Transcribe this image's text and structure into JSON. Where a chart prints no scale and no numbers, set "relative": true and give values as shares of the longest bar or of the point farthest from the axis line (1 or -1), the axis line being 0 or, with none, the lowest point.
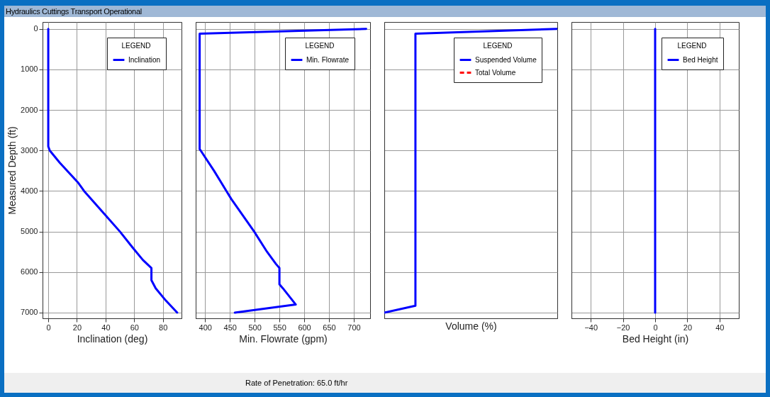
{
  "chart_data": [
    {
      "type": "line",
      "title": "Hydraulics Cuttings Transport Operational",
      "orientation": "horizontal",
      "xlabel": "Inclination (deg)",
      "ylabel": "Measured Depth (ft)",
      "xlim": [
        -4,
        93
      ],
      "xticks": [
        0,
        20,
        40,
        60,
        80
      ],
      "ylim": [
        7140,
        -170
      ],
      "yticks": [
        0,
        1000,
        2000,
        3000,
        4000,
        5000,
        6000,
        7000
      ],
      "grid": true,
      "legend": "top right",
      "legend_title": "LEGEND",
      "x": [
        0,
        2900,
        3000,
        3300,
        3800,
        4000,
        4600,
        5000,
        5400,
        5700,
        5900,
        6200,
        6400,
        6700,
        7000
      ],
      "series": [
        {
          "name": "Inclination",
          "color": "#0000ff",
          "values": [
            0,
            0,
            1,
            8,
            21,
            25,
            40,
            50,
            59,
            66,
            72,
            72,
            75,
            82,
            90
          ]
        }
      ]
    },
    {
      "type": "line",
      "orientation": "horizontal",
      "xlabel": "Min. Flowrate (gpm)",
      "xlim": [
        381,
        733
      ],
      "xticks": [
        400,
        450,
        500,
        550,
        600,
        650,
        700
      ],
      "ylim": [
        7140,
        -170
      ],
      "yticks": [
        0,
        1000,
        2000,
        3000,
        4000,
        5000,
        6000,
        7000
      ],
      "grid": true,
      "tick_labels": "x",
      "legend": "top right",
      "legend_title": "LEGEND",
      "annotations": [
        "Rate of Penetration: 65.0 ft/hr"
      ],
      "x": [
        0,
        117,
        2970,
        3000,
        3500,
        4000,
        4200,
        5000,
        5500,
        5800,
        5900,
        6300,
        6400,
        6800,
        7000
      ],
      "series": [
        {
          "name": "Min. Flowrate",
          "color": "#0000ff",
          "values": [
            725,
            389,
            389,
            391,
            418,
            443,
            453,
            499,
            525,
            543,
            550,
            550,
            557,
            583,
            460
          ]
        }
      ]
    },
    {
      "type": "line",
      "orientation": "horizontal",
      "relative": true,
      "xlabel": "Volume (%)",
      "ylim": [
        7140,
        -170
      ],
      "yticks": [
        0,
        1000,
        2000,
        3000,
        4000,
        5000,
        6000,
        7000
      ],
      "grid": "y",
      "tick_labels": false,
      "legend": "top right",
      "legend_title": "LEGEND",
      "x": [
        0,
        117,
        6830,
        7000
      ],
      "series": [
        {
          "name": "Suspended Volume",
          "color": "#0000ff",
          "line_style": "solid",
          "values": [
            1,
            0.18,
            0.18,
            0
          ]
        },
        {
          "name": "Total Volume",
          "color": "#ff0000",
          "line_style": "dashed",
          "values": [
            null,
            null,
            null,
            null
          ]
        }
      ]
    },
    {
      "type": "line",
      "orientation": "horizontal",
      "xlabel": "Bed Height (in)",
      "xlim": [
        -52,
        52
      ],
      "xticks": [
        -40,
        -20,
        0,
        20,
        40
      ],
      "ylim": [
        7140,
        -170
      ],
      "yticks": [
        0,
        1000,
        2000,
        3000,
        4000,
        5000,
        6000,
        7000
      ],
      "grid": true,
      "tick_labels": "x",
      "legend": "top right",
      "legend_title": "LEGEND",
      "x": [
        0,
        7000
      ],
      "series": [
        {
          "name": "Bed Height",
          "color": "#0000ff",
          "values": [
            0,
            0
          ]
        }
      ]
    }
  ]
}
